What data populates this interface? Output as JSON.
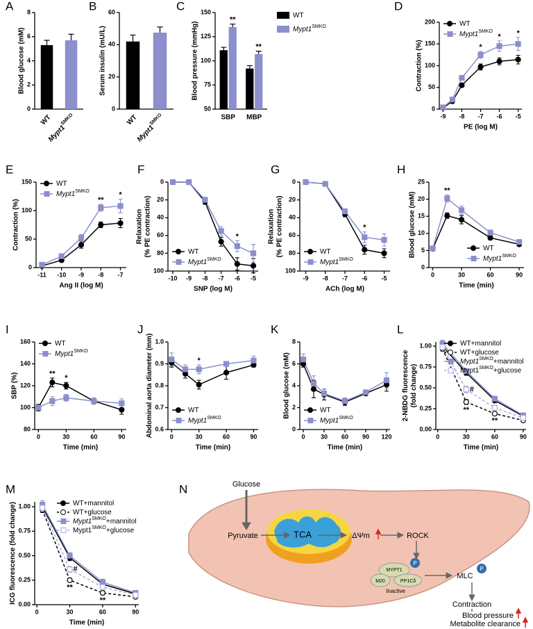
{
  "chart_data": [
    {
      "panel": "A",
      "type": "bar",
      "ylabel": "Blood glucose (mM)",
      "categories": [
        [
          "WT"
        ],
        [
          "Mypt1",
          "SMKO"
        ]
      ],
      "values": [
        5.3,
        5.7
      ],
      "errors": [
        0.4,
        0.5
      ],
      "colors": [
        "#000000",
        "#8b8fcc"
      ],
      "ylim": [
        0,
        8
      ],
      "yticks": [
        0,
        2,
        4,
        6,
        8
      ],
      "xtick_rotation": 45
    },
    {
      "panel": "B",
      "type": "bar",
      "ylabel": "Serum insulin (mU/L)",
      "categories": [
        [
          "WT"
        ],
        [
          "Mypt1",
          "SMKO"
        ]
      ],
      "values": [
        42,
        47.5
      ],
      "errors": [
        4,
        3.5
      ],
      "colors": [
        "#000000",
        "#8b8fcc"
      ],
      "ylim": [
        0,
        60
      ],
      "yticks": [
        0,
        20,
        40,
        60
      ],
      "xtick_rotation": 45
    },
    {
      "panel": "C",
      "type": "bar",
      "ylabel": "Blood pressure (mmHg)",
      "categories": [
        "SBP",
        "MBP"
      ],
      "series": [
        {
          "name": [
            "WT"
          ],
          "color": "#000000",
          "values": [
            111,
            92
          ],
          "errors": [
            3,
            3
          ]
        },
        {
          "name": [
            "Mypt1",
            "SMKO"
          ],
          "color": "#8b8fcc",
          "values": [
            135,
            107
          ],
          "errors": [
            3,
            3
          ]
        }
      ],
      "ylim": [
        50,
        150
      ],
      "yticks": [
        50,
        75,
        100,
        125,
        150
      ],
      "annotations": [
        {
          "text": "**",
          "category": "SBP"
        },
        {
          "text": "**",
          "category": "MBP"
        }
      ],
      "legend": "outside right"
    },
    {
      "panel": "D",
      "type": "line",
      "ylabel": "Contraction (%)",
      "xlabel": "PE (log M)",
      "x": [
        -9,
        -8.5,
        -8,
        -7,
        -6,
        -5
      ],
      "series": [
        {
          "name": [
            "WT"
          ],
          "color": "#000000",
          "marker": "circle",
          "values": [
            3,
            18,
            55,
            97,
            110,
            114
          ],
          "errors": [
            1,
            2,
            4,
            7,
            8,
            10
          ]
        },
        {
          "name": [
            "Mypt1",
            "SMKO"
          ],
          "color": "#8b8fcc",
          "marker": "square",
          "values": [
            4,
            22,
            72,
            125,
            145,
            150
          ],
          "errors": [
            1,
            3,
            5,
            8,
            12,
            15
          ]
        }
      ],
      "xlim": [
        -9.2,
        -4.8
      ],
      "xticks": [
        -9,
        -8,
        -7,
        -6,
        -5
      ],
      "ylim": [
        0,
        200
      ],
      "yticks": [
        0,
        50,
        100,
        150,
        200
      ],
      "annotations": [
        {
          "text": "*",
          "x": -7
        },
        {
          "text": "*",
          "x": -6
        },
        {
          "text": "*",
          "x": -5
        }
      ],
      "legend": "upper left"
    },
    {
      "panel": "E",
      "type": "line",
      "ylabel": "Contraction (%)",
      "xlabel": "Ang II (log M)",
      "x": [
        -11,
        -10,
        -9,
        -8,
        -7
      ],
      "series": [
        {
          "name": [
            "WT"
          ],
          "color": "#000000",
          "marker": "circle",
          "values": [
            3,
            13,
            40,
            75,
            78
          ],
          "errors": [
            1,
            3,
            6,
            5,
            8
          ]
        },
        {
          "name": [
            "Mypt1",
            "SMKO"
          ],
          "color": "#8b8fcc",
          "marker": "square",
          "values": [
            5,
            20,
            52,
            105,
            108
          ],
          "errors": [
            1,
            3,
            6,
            6,
            12
          ]
        }
      ],
      "xlim": [
        -11.3,
        -6.7
      ],
      "xticks": [
        -11,
        -10,
        -9,
        -8,
        -7
      ],
      "ylim": [
        0,
        150
      ],
      "yticks": [
        0,
        50,
        100,
        150
      ],
      "annotations": [
        {
          "text": "**",
          "x": -8
        },
        {
          "text": "*",
          "x": -7
        }
      ],
      "legend": "upper left"
    },
    {
      "panel": "F",
      "type": "line",
      "ylabel": [
        "Relaxation",
        "(% PE contraction)"
      ],
      "xlabel": "SNP (log M)",
      "x": [
        -10,
        -9,
        -8,
        -7,
        -6,
        -5
      ],
      "series": [
        {
          "name": [
            "WT"
          ],
          "color": "#000000",
          "marker": "circle",
          "values": [
            0,
            0,
            22,
            67,
            92,
            94
          ],
          "errors": [
            0,
            0,
            3,
            5,
            7,
            8
          ]
        },
        {
          "name": [
            "Mypt1",
            "SMKO"
          ],
          "color": "#8b8fcc",
          "marker": "square",
          "values": [
            0,
            0,
            20,
            55,
            72,
            80
          ],
          "errors": [
            0,
            0,
            3,
            5,
            6,
            10
          ]
        }
      ],
      "xlim": [
        -10.3,
        -4.7
      ],
      "xticks": [
        -10,
        -9,
        -8,
        -7,
        -6,
        -5
      ],
      "ylim": [
        100,
        0
      ],
      "yticks": [
        0,
        20,
        40,
        60,
        80,
        100
      ],
      "annotations": [
        {
          "text": "*",
          "x": -6
        }
      ],
      "legend": "lower left"
    },
    {
      "panel": "G",
      "type": "line",
      "ylabel": [
        "Relaxation",
        "(% PE contraction)"
      ],
      "xlabel": "ACh (log M)",
      "x": [
        -9,
        -8,
        -7,
        -6,
        -5
      ],
      "series": [
        {
          "name": [
            "WT"
          ],
          "color": "#000000",
          "marker": "circle",
          "values": [
            0,
            2,
            36,
            76,
            80
          ],
          "errors": [
            0,
            0,
            3,
            5,
            5
          ]
        },
        {
          "name": [
            "Mypt1",
            "SMKO"
          ],
          "color": "#8b8fcc",
          "marker": "square",
          "values": [
            0,
            2,
            33,
            62,
            65
          ],
          "errors": [
            0,
            0,
            3,
            6,
            7
          ]
        }
      ],
      "xlim": [
        -9.3,
        -4.7
      ],
      "xticks": [
        -9,
        -8,
        -7,
        -6,
        -5
      ],
      "ylim": [
        100,
        0
      ],
      "yticks": [
        0,
        20,
        40,
        60,
        80,
        100
      ],
      "annotations": [
        {
          "text": "*",
          "x": -6
        }
      ],
      "legend": "lower left"
    },
    {
      "panel": "H",
      "type": "line",
      "ylabel": "Blood glucose (mM)",
      "xlabel": "Time (min)",
      "x": [
        0,
        15,
        30,
        60,
        90
      ],
      "series": [
        {
          "name": [
            "WT"
          ],
          "color": "#000000",
          "marker": "circle",
          "values": [
            5.5,
            15.2,
            14,
            8.7,
            6.8
          ],
          "errors": [
            0.3,
            0.8,
            1.2,
            0.6,
            0.3
          ]
        },
        {
          "name": [
            "Mypt1",
            "SMKO"
          ],
          "color": "#8b8fcc",
          "marker": "square",
          "values": [
            5.6,
            20.2,
            16.8,
            10.2,
            7.5
          ],
          "errors": [
            0.3,
            1,
            1.2,
            0.8,
            0.4
          ]
        }
      ],
      "xlim": [
        -4,
        95
      ],
      "xticks": [
        0,
        30,
        60,
        90
      ],
      "ylim": [
        0,
        25
      ],
      "yticks": [
        0,
        5,
        10,
        15,
        20,
        25
      ],
      "annotations": [
        {
          "text": "**",
          "x": 15
        }
      ],
      "legend": "lower right"
    },
    {
      "panel": "I",
      "type": "line",
      "ylabel": "SBP (%)",
      "xlabel": "Time (min)",
      "x": [
        0,
        15,
        30,
        60,
        90
      ],
      "series": [
        {
          "name": [
            "WT"
          ],
          "color": "#000000",
          "marker": "circle",
          "values": [
            100,
            123,
            120,
            106,
            98
          ],
          "errors": [
            3,
            4,
            3,
            2,
            4
          ]
        },
        {
          "name": [
            "Mypt1",
            "SMKO"
          ],
          "color": "#8b8fcc",
          "marker": "square",
          "values": [
            100,
            106,
            109,
            106,
            104
          ],
          "errors": [
            2,
            4,
            3,
            3,
            4
          ]
        }
      ],
      "xlim": [
        -4,
        95
      ],
      "xticks": [
        0,
        30,
        60,
        90
      ],
      "ylim": [
        80,
        160
      ],
      "yticks": [
        80,
        100,
        120,
        140,
        160
      ],
      "annotations": [
        {
          "text": "**",
          "x": 15
        },
        {
          "text": "*",
          "x": 30
        }
      ],
      "legend": "upper left"
    },
    {
      "panel": "J",
      "type": "line",
      "ylabel": "Abdominal aorta diameter (mm)",
      "xlabel": "Time (min)",
      "x": [
        0,
        15,
        30,
        60,
        90
      ],
      "series": [
        {
          "name": [
            "WT"
          ],
          "color": "#000000",
          "marker": "circle",
          "values": [
            0.905,
            0.855,
            0.805,
            0.86,
            0.895
          ],
          "errors": [
            0.02,
            0.02,
            0.02,
            0.03,
            0.01
          ]
        },
        {
          "name": [
            "Mypt1",
            "SMKO"
          ],
          "color": "#8b8fcc",
          "marker": "square",
          "values": [
            0.92,
            0.875,
            0.875,
            0.9,
            0.915
          ],
          "errors": [
            0.03,
            0.02,
            0.02,
            0.01,
            0.02
          ]
        }
      ],
      "xlim": [
        -4,
        95
      ],
      "xticks": [
        0,
        30,
        60,
        90
      ],
      "ylim": [
        0.6,
        1
      ],
      "yticks": [
        0.6,
        0.7,
        0.8,
        0.9,
        {
          "value": 1,
          "label": "1.0"
        }
      ],
      "annotations": [
        {
          "text": "*",
          "x": 30
        }
      ],
      "legend": "lower left"
    },
    {
      "panel": "K",
      "type": "line",
      "ylabel": "Blood glucose (mM)",
      "xlabel": "Time (min)",
      "x": [
        0,
        15,
        30,
        60,
        90,
        120
      ],
      "series": [
        {
          "name": [
            "WT"
          ],
          "color": "#000000",
          "marker": "circle",
          "values": [
            6,
            3.7,
            3.2,
            2.5,
            3.3,
            4.1
          ],
          "errors": [
            0.3,
            0.8,
            0.5,
            0.3,
            0.2,
            0.6
          ]
        },
        {
          "name": [
            "Mypt1",
            "SMKO"
          ],
          "color": "#8b8fcc",
          "marker": "square",
          "values": [
            6.4,
            4.2,
            3.3,
            2.6,
            3.4,
            4.5
          ],
          "errors": [
            0.5,
            0.7,
            0.4,
            0.3,
            0.2,
            0.7
          ]
        }
      ],
      "xlim": [
        -5,
        125
      ],
      "xticks": [
        0,
        30,
        60,
        90,
        120
      ],
      "ylim": [
        0,
        8
      ],
      "yticks": [
        0,
        2,
        4,
        6,
        8
      ],
      "legend": "lower left"
    },
    {
      "panel": "L",
      "type": "line",
      "ylabel": [
        "2-NBDG fluorescence",
        "(fold change)"
      ],
      "xlabel": "Time (min)",
      "x": [
        5,
        30,
        60,
        90
      ],
      "series": [
        {
          "name": [
            "WT+mannitol"
          ],
          "color": "#000000",
          "marker": "circle",
          "values": [
            1.0,
            0.68,
            0.35,
            0.16
          ],
          "errors": [
            0.04,
            0.03,
            0.03,
            0.02
          ]
        },
        {
          "name": [
            "WT+glucose"
          ],
          "color": "#000000",
          "marker": "circle",
          "open": true,
          "dash": true,
          "values": [
            0.97,
            0.33,
            0.19,
            0.11
          ],
          "errors": [
            0.03,
            0.03,
            0.02,
            0.01
          ]
        },
        {
          "name": [
            "Mypt1",
            "SMKO",
            "+mannitol"
          ],
          "color": "#8b8fcc",
          "marker": "square",
          "values": [
            1.03,
            0.7,
            0.37,
            0.17
          ],
          "errors": [
            0.04,
            0.03,
            0.03,
            0.02
          ]
        },
        {
          "name": [
            "Mypt1",
            "SMKO",
            "+glucose"
          ],
          "italic": false,
          "color": "#a9acdc",
          "marker": "square",
          "open": true,
          "dash": true,
          "values": [
            0.99,
            0.48,
            0.26,
            0.14
          ],
          "errors": [
            0.04,
            0.04,
            0.03,
            0.02
          ]
        }
      ],
      "xlim": [
        -2,
        93
      ],
      "xticks": [
        0,
        30,
        60,
        90
      ],
      "ylim": [
        0,
        1.05
      ],
      "yticks": [
        {
          "value": 0,
          "label": "0.00"
        },
        0.25,
        {
          "value": 0.5,
          "label": "0.50"
        },
        0.75,
        {
          "value": 1,
          "label": "1.00"
        }
      ],
      "annotations": [
        {
          "text": "**",
          "x": 30,
          "position": "below"
        },
        {
          "text": "#",
          "x": 30,
          "position": "right"
        },
        {
          "text": "**",
          "x": 60,
          "position": "below"
        }
      ],
      "legend": "upper right"
    },
    {
      "panel": "M",
      "type": "line",
      "ylabel": "ICG fluorescence (fold change)",
      "xlabel": "Time (min)",
      "x": [
        5,
        30,
        60,
        90
      ],
      "series": [
        {
          "name": [
            "WT+mannitol"
          ],
          "color": "#000000",
          "marker": "circle",
          "values": [
            1.0,
            0.48,
            0.21,
            0.11
          ],
          "errors": [
            0.04,
            0.03,
            0.02,
            0.01
          ]
        },
        {
          "name": [
            "WT+glucose"
          ],
          "color": "#000000",
          "marker": "circle",
          "open": true,
          "dash": true,
          "values": [
            0.97,
            0.25,
            0.12,
            0.08
          ],
          "errors": [
            0.03,
            0.02,
            0.02,
            0.01
          ]
        },
        {
          "name": [
            "Mypt1",
            "SMKO",
            "+mannitol"
          ],
          "color": "#8b8fcc",
          "marker": "square",
          "values": [
            1.02,
            0.5,
            0.23,
            0.12
          ],
          "errors": [
            0.04,
            0.03,
            0.03,
            0.02
          ]
        },
        {
          "name": [
            "Mypt1",
            "SMKO",
            "+glucose"
          ],
          "italic": false,
          "color": "#a9acdc",
          "marker": "square",
          "open": true,
          "dash": true,
          "values": [
            0.99,
            0.36,
            0.18,
            0.1
          ],
          "errors": [
            0.04,
            0.03,
            0.02,
            0.02
          ]
        }
      ],
      "xlim": [
        -2,
        93
      ],
      "xticks": [
        0,
        30,
        60,
        90
      ],
      "ylim": [
        0,
        1.05
      ],
      "yticks": [
        {
          "value": 0,
          "label": "0.00"
        },
        0.25,
        {
          "value": 0.5,
          "label": "0.50"
        },
        0.75,
        {
          "value": 1,
          "label": "1.00"
        }
      ],
      "annotations": [
        {
          "text": "**",
          "x": 30,
          "position": "below"
        },
        {
          "text": "#",
          "x": 30,
          "position": "right"
        },
        {
          "text": "**",
          "x": 60,
          "position": "below"
        }
      ],
      "legend": "upper right"
    }
  ],
  "diagram": {
    "panel": "N",
    "glucose": "Glucose",
    "pyruvate": "Pyruvate",
    "tca": "TCA",
    "membrane_potential": "ΔΨm",
    "rock": "ROCK",
    "mypt1": "MYPT1",
    "m20": "M20",
    "pp1c": "PP1Cδ",
    "inactive": "Inactive",
    "phospho": "P",
    "mlc": "MLC",
    "contraction": "Contraction",
    "blood_pressure": "Blood pressure",
    "clearance": "Metabolite clearance"
  }
}
